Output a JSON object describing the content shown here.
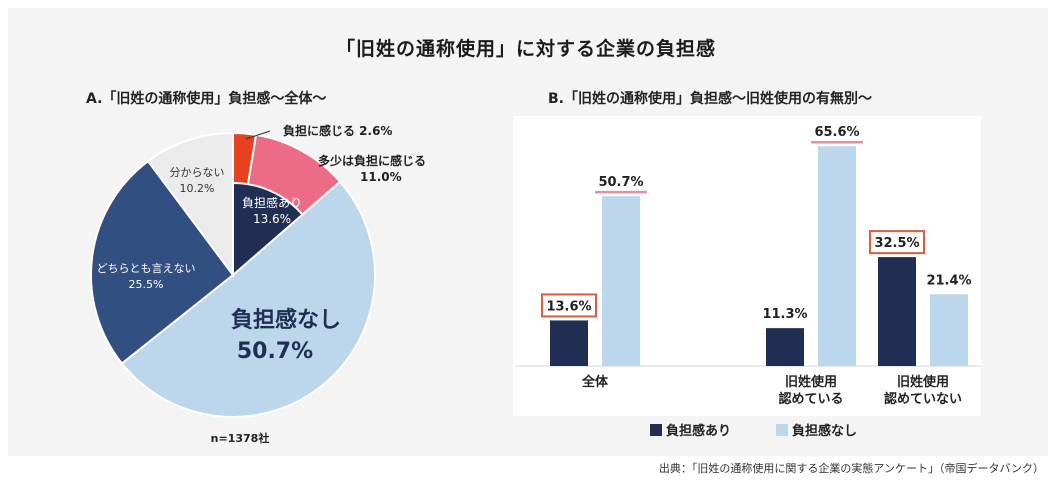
{
  "title": "「旧姓の通称使用」に対する企業の負担感",
  "source": "出典：「旧姓の通称使用に関する企業の実態アンケート」（帝国データバンク）",
  "colors": {
    "navy": "#1f2e52",
    "light_blue": "#bcd6ec",
    "pink": "#ec6c86",
    "red": "#e6421f",
    "gray": "#ebebeb",
    "dark_blue": "#324f82",
    "highlight": "#e05a3c",
    "underline": "#e88f9b"
  },
  "chart_data": [
    {
      "type": "pie",
      "title": "A.「旧姓の通称使用」負担感～全体～",
      "note": "n=1378社",
      "slices": [
        {
          "label": "負担に感じる",
          "value": 2.6,
          "display": "2.6%"
        },
        {
          "label": "多少は負担に感じる",
          "value": 11.0,
          "display": "11.0%"
        },
        {
          "label": "負担感なし",
          "value": 50.7,
          "display": "50.7%"
        },
        {
          "label": "どちらとも言えない",
          "value": 25.5,
          "display": "25.5%"
        },
        {
          "label": "分からない",
          "value": 10.2,
          "display": "10.2%"
        }
      ],
      "inner_group": {
        "label": "負担感あり",
        "value": 13.6,
        "display": "13.6%"
      }
    },
    {
      "type": "bar",
      "title": "B.「旧姓の通称使用」負担感～旧姓使用の有無別～",
      "categories": [
        "全体",
        "旧姓使用\n認めている",
        "旧姓使用\n認めていない"
      ],
      "series": [
        {
          "name": "負担感あり",
          "values": [
            13.6,
            11.3,
            32.5
          ],
          "labels": [
            "13.6%",
            "11.3%",
            "32.5%"
          ]
        },
        {
          "name": "負担感なし",
          "values": [
            50.7,
            65.6,
            21.4
          ],
          "labels": [
            "50.7%",
            "65.6%",
            "21.4%"
          ]
        }
      ],
      "highlighted_labels": [
        "13.6%",
        "32.5%"
      ],
      "underlined_labels": [
        "50.7%",
        "65.6%"
      ],
      "ylim": [
        0,
        70
      ],
      "legend": {
        "placement": "bottom",
        "items": [
          "負担感あり",
          "負担感なし"
        ]
      }
    }
  ]
}
